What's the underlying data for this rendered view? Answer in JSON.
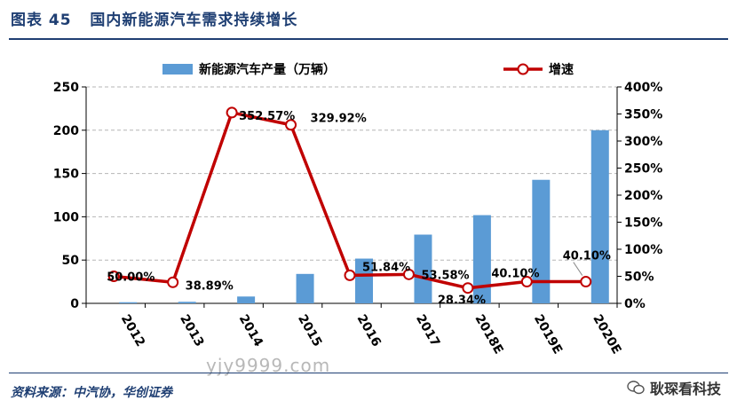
{
  "header": {
    "figure_no": "图表 45",
    "title": "国内新能源汽车需求持续增长"
  },
  "footer": {
    "source": "资料来源：中汽协，华创证券",
    "watermark": "yjy9999.com",
    "brand": "耿琛看科技"
  },
  "colors": {
    "bar": "#5B9BD5",
    "line": "#C00000",
    "title": "#1F3F73"
  },
  "chart_data": {
    "type": "bar",
    "categories": [
      "2012",
      "2013",
      "2014",
      "2015",
      "2016",
      "2017",
      "2018E",
      "2019E",
      "2020E"
    ],
    "series": [
      {
        "name": "新能源汽车产量（万辆）",
        "type": "bar",
        "axis": "left",
        "values": [
          1.3,
          1.8,
          7.9,
          34.0,
          51.7,
          79.4,
          101.9,
          142.7,
          200.0
        ]
      },
      {
        "name": "增速",
        "type": "line",
        "axis": "right",
        "values": [
          50.0,
          38.89,
          352.57,
          329.92,
          51.84,
          53.58,
          28.34,
          40.1,
          40.1
        ],
        "labels": [
          "50.00%",
          "38.89%",
          "352.57%",
          "329.92%",
          "51.84%",
          "53.58%",
          "28.34%",
          "40.10%",
          "40.10%"
        ]
      }
    ],
    "y_left": {
      "ylim": [
        0,
        250
      ],
      "ticks": [
        "0",
        "50",
        "100",
        "150",
        "200",
        "250"
      ]
    },
    "y_right": {
      "ylim": [
        0,
        400
      ],
      "ticks": [
        "0%",
        "50%",
        "100%",
        "150%",
        "200%",
        "250%",
        "300%",
        "350%",
        "400%"
      ]
    },
    "grid": true,
    "legend_position": "top"
  }
}
